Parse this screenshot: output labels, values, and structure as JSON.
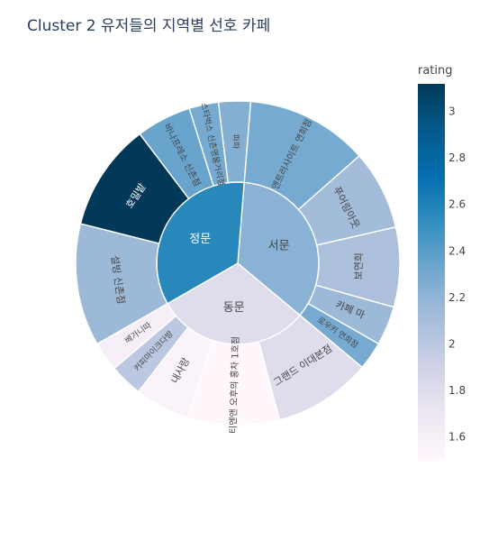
{
  "chart_data": {
    "type": "sunburst",
    "title": "Cluster 2 유저들의 지역별 선호 카페",
    "colorbar": {
      "title": "rating",
      "range": [
        1.5,
        3.12
      ],
      "ticks": [
        1.6,
        1.8,
        2,
        2.2,
        2.4,
        2.6,
        2.8,
        3
      ]
    },
    "colorscale": [
      "#fff7fb",
      "#ece7f2",
      "#d0d1e6",
      "#a6bddb",
      "#74a9cf",
      "#3690c0",
      "#0570b0",
      "#045a8d",
      "#023858"
    ],
    "regions": [
      {
        "name": "서문",
        "rating": 2.22,
        "cafes": [
          {
            "name": "앤트러사이트 연희점",
            "rating": 2.3,
            "value": 10
          },
          {
            "name": "푸어링아웃",
            "rating": 2.12,
            "value": 6.5
          },
          {
            "name": "보연희",
            "rating": 2.08,
            "value": 6.5
          },
          {
            "name": "카페 마",
            "rating": 2.15,
            "value": 3.2
          },
          {
            "name": "로우키 연희점",
            "rating": 2.3,
            "value": 2.3
          }
        ]
      },
      {
        "name": "동문",
        "rating": 1.8,
        "cafes": [
          {
            "name": "그랜드 이대본점",
            "rating": 1.8,
            "value": 8
          },
          {
            "name": "티엔앤 오후의 홍차 1호점",
            "rating": 1.5,
            "value": 7.5
          },
          {
            "name": "내사랑",
            "rating": 1.55,
            "value": 4.5
          },
          {
            "name": "커피마이크다방",
            "rating": 2.0,
            "value": 2.7
          },
          {
            "name": "베가니따",
            "rating": 1.6,
            "value": 2.4
          }
        ]
      },
      {
        "name": "정문",
        "rating": 2.57,
        "cafes": [
          {
            "name": "설빙 신촌점",
            "rating": 2.15,
            "value": 10
          },
          {
            "name": "호밀밭",
            "rating": 3.12,
            "value": 8.8
          },
          {
            "name": "바나프레소 신촌점",
            "rating": 2.35,
            "value": 4.5
          },
          {
            "name": "스타벅스 신촌명물거리점",
            "rating": 2.3,
            "value": 2.4
          },
          {
            "name": "파파",
            "rating": 2.25,
            "value": 2.6
          }
        ]
      }
    ]
  }
}
